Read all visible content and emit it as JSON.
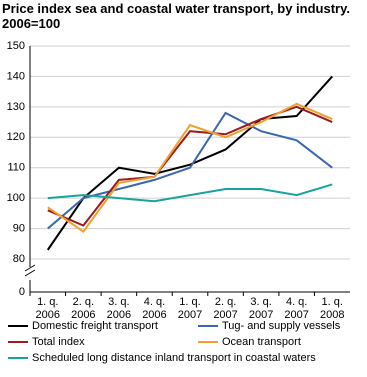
{
  "chart_data": {
    "type": "line",
    "title": "Price index sea and coastal water transport, by industry.",
    "subtitle": "2006=100",
    "categories": [
      "1. q. 2006",
      "2. q. 2006",
      "3. q. 2006",
      "4. q. 2006",
      "1. q. 2007",
      "2. q. 2007",
      "3. q. 2007",
      "4. q. 2007",
      "1. q. 2008"
    ],
    "series": [
      {
        "name": "Domestic freight transport",
        "color": "#000000",
        "values": [
          83,
          100,
          110,
          108,
          111,
          116,
          126,
          127,
          140
        ]
      },
      {
        "name": "Tug- and supply vessels",
        "color": "#3a67b0",
        "values": [
          90,
          100,
          103,
          106,
          110,
          128,
          122,
          119,
          110
        ]
      },
      {
        "name": "Total index",
        "color": "#9b1c1c",
        "values": [
          96,
          91,
          106,
          107,
          122,
          121,
          126,
          130,
          125
        ]
      },
      {
        "name": "Ocean transport",
        "color": "#f0a030",
        "values": [
          97,
          89,
          105,
          107,
          124,
          120,
          125,
          131,
          126
        ]
      },
      {
        "name": "Scheduled long distance inland transport in coastal waters",
        "color": "#1aa39a",
        "values": [
          100,
          101,
          100,
          99,
          101,
          103,
          103,
          101,
          104.5
        ]
      }
    ],
    "ylim": [
      0,
      150
    ],
    "yticks": [
      0,
      80,
      90,
      100,
      110,
      120,
      130,
      140,
      150
    ],
    "axis_break": [
      0,
      80
    ],
    "grid": true
  }
}
